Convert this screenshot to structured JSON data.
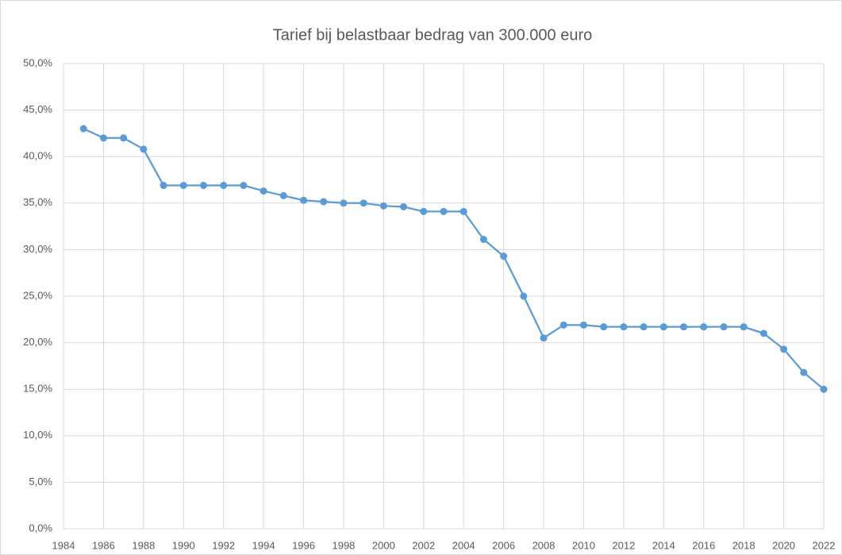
{
  "chart_data": {
    "type": "line",
    "title": "Tarief bij belastbaar bedrag van 300.000 euro",
    "x": [
      1985,
      1986,
      1987,
      1988,
      1989,
      1990,
      1991,
      1992,
      1993,
      1994,
      1995,
      1996,
      1997,
      1998,
      1999,
      2000,
      2001,
      2002,
      2003,
      2004,
      2005,
      2006,
      2007,
      2008,
      2009,
      2010,
      2011,
      2012,
      2013,
      2014,
      2015,
      2016,
      2017,
      2018,
      2019,
      2020,
      2021,
      2022
    ],
    "values": [
      43.0,
      42.0,
      42.0,
      40.8,
      36.9,
      36.9,
      36.9,
      36.9,
      36.9,
      36.3,
      35.8,
      35.3,
      35.15,
      35.0,
      35.0,
      34.7,
      34.6,
      34.1,
      34.1,
      34.1,
      31.1,
      29.3,
      25.0,
      20.5,
      21.9,
      21.9,
      21.7,
      21.7,
      21.7,
      21.7,
      21.7,
      21.7,
      21.7,
      21.7,
      21.0,
      19.3,
      16.8,
      15.0
    ],
    "color": "#5b9bd5",
    "xlim": [
      1984,
      2022
    ],
    "xticks": [
      1984,
      1986,
      1988,
      1990,
      1992,
      1994,
      1996,
      1998,
      2000,
      2002,
      2004,
      2006,
      2008,
      2010,
      2012,
      2014,
      2016,
      2018,
      2020,
      2022
    ],
    "ylim": [
      0,
      50
    ],
    "yticks": [
      {
        "value": 0,
        "label": "0,0%"
      },
      {
        "value": 5,
        "label": "5,0%"
      },
      {
        "value": 10,
        "label": "10,0%"
      },
      {
        "value": 15,
        "label": "15,0%"
      },
      {
        "value": 20,
        "label": "20,0%"
      },
      {
        "value": 25,
        "label": "25,0%"
      },
      {
        "value": 30,
        "label": "30,0%"
      },
      {
        "value": 35,
        "label": "35,0%"
      },
      {
        "value": 40,
        "label": "40,0%"
      },
      {
        "value": 45,
        "label": "45,0%"
      },
      {
        "value": 50,
        "label": "50,0%"
      }
    ],
    "grid": true
  }
}
